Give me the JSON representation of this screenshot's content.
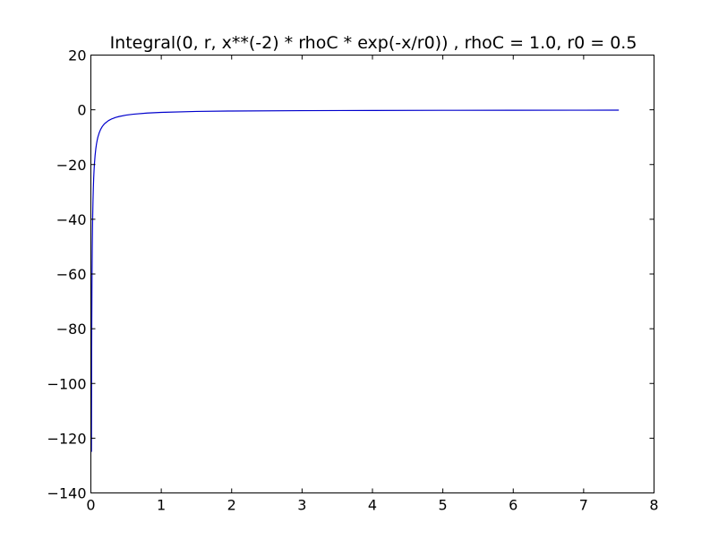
{
  "chart_data": {
    "type": "line",
    "title": "Integral(0, r, x**(-2) * rhoC * exp(-x/r0)) , rhoC = 1.0, r0 = 0.5",
    "xlabel": "",
    "ylabel": "",
    "xlim": [
      0,
      8
    ],
    "ylim": [
      -140,
      20
    ],
    "grid": false,
    "x_ticks": [
      0,
      1,
      2,
      3,
      4,
      5,
      6,
      7,
      8
    ],
    "y_ticks": [
      20,
      0,
      -20,
      -40,
      -60,
      -80,
      -100,
      -120,
      -140
    ],
    "x_tick_labels": [
      "0",
      "1",
      "2",
      "3",
      "4",
      "5",
      "6",
      "7",
      "8"
    ],
    "y_tick_labels": [
      "20",
      "0",
      "−20",
      "−40",
      "−60",
      "−80",
      "−100",
      "−120",
      "−140"
    ],
    "series": [
      {
        "color": "#0000cc",
        "x": [
          0.008,
          0.009,
          0.01,
          0.011,
          0.012,
          0.013,
          0.015,
          0.017,
          0.02,
          0.023,
          0.026,
          0.03,
          0.035,
          0.04,
          0.045,
          0.05,
          0.06,
          0.07,
          0.08,
          0.09,
          0.1,
          0.12,
          0.14,
          0.16,
          0.18,
          0.2,
          0.25,
          0.3,
          0.35,
          0.4,
          0.5,
          0.6,
          0.8,
          1.0,
          1.5,
          2.0,
          3.0,
          4.0,
          5.0,
          6.0,
          7.0,
          7.5
        ],
        "y": [
          -124.99,
          -111.1,
          -99.99,
          -90.9,
          -83.32,
          -76.91,
          -66.64,
          -58.8,
          -49.97,
          -43.44,
          -38.43,
          -33.3,
          -28.53,
          -24.96,
          -22.18,
          -19.96,
          -16.62,
          -14.24,
          -12.45,
          -11.06,
          -9.95,
          -8.28,
          -7.09,
          -6.19,
          -5.5,
          -4.95,
          -3.95,
          -3.28,
          -2.81,
          -2.45,
          -1.95,
          -1.61,
          -1.18,
          -0.93,
          -0.59,
          -0.44,
          -0.31,
          -0.24,
          -0.19,
          -0.16,
          -0.14,
          -0.13
        ]
      }
    ]
  }
}
